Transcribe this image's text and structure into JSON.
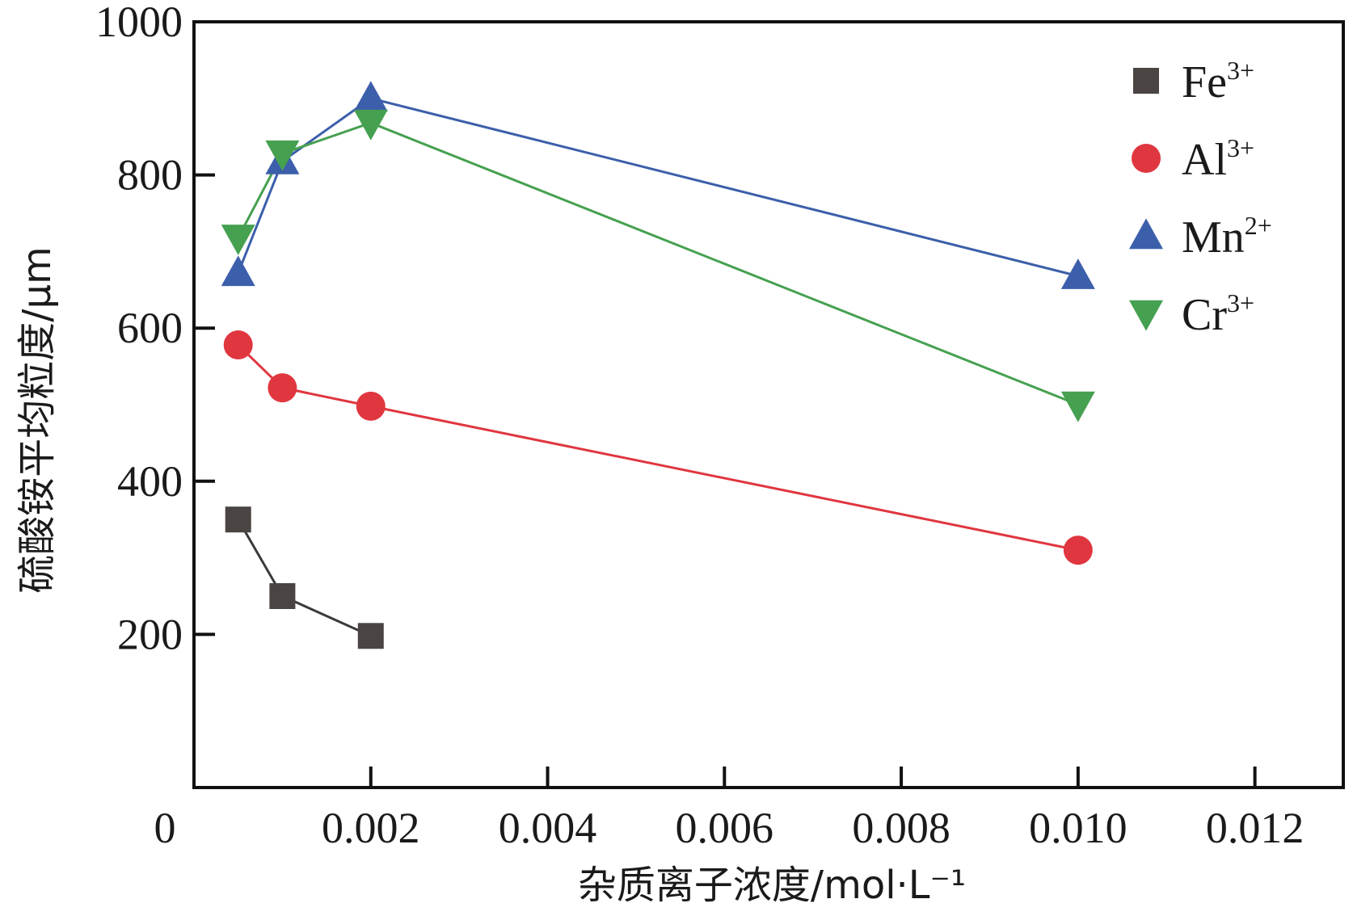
{
  "chart_data": {
    "type": "line",
    "xlabel": "杂质离子浓度/mol·L⁻¹",
    "ylabel": "硫酸铵平均粒度/μm",
    "xlim": [
      0,
      0.013
    ],
    "ylim": [
      0,
      1000
    ],
    "x_ticks": [
      {
        "value": 0,
        "label": "0"
      },
      {
        "value": 0.002,
        "label": "0.002"
      },
      {
        "value": 0.004,
        "label": "0.004"
      },
      {
        "value": 0.006,
        "label": "0.006"
      },
      {
        "value": 0.008,
        "label": "0.008"
      },
      {
        "value": 0.01,
        "label": "0.010"
      },
      {
        "value": 0.012,
        "label": "0.012"
      }
    ],
    "y_ticks": [
      {
        "value": 200,
        "label": "200"
      },
      {
        "value": 400,
        "label": "400"
      },
      {
        "value": 600,
        "label": "600"
      },
      {
        "value": 800,
        "label": "800"
      },
      {
        "value": 1000,
        "label": "1000"
      }
    ],
    "legend_position": "top-right",
    "grid": false,
    "series": [
      {
        "name_base": "Fe",
        "name_sup": "3+",
        "marker": "square",
        "marker_color": "#4a4543",
        "line_color": "#3a3a3a",
        "x": [
          0.0005,
          0.001,
          0.002
        ],
        "y": [
          350,
          250,
          198
        ]
      },
      {
        "name_base": "Al",
        "name_sup": "3+",
        "marker": "circle",
        "marker_color": "#e0363f",
        "line_color": "#e0363f",
        "x": [
          0.0005,
          0.001,
          0.002,
          0.01
        ],
        "y": [
          578,
          522,
          498,
          310
        ]
      },
      {
        "name_base": "Mn",
        "name_sup": "2+",
        "marker": "triangle-up",
        "marker_color": "#3c5fab",
        "line_color": "#3c5fab",
        "x": [
          0.0005,
          0.001,
          0.002,
          0.01
        ],
        "y": [
          672,
          818,
          900,
          668
        ]
      },
      {
        "name_base": "Cr",
        "name_sup": "3+",
        "marker": "triangle-down",
        "marker_color": "#45a050",
        "line_color": "#45a050",
        "x": [
          0.0005,
          0.001,
          0.002,
          0.01
        ],
        "y": [
          718,
          828,
          868,
          500
        ]
      }
    ]
  }
}
